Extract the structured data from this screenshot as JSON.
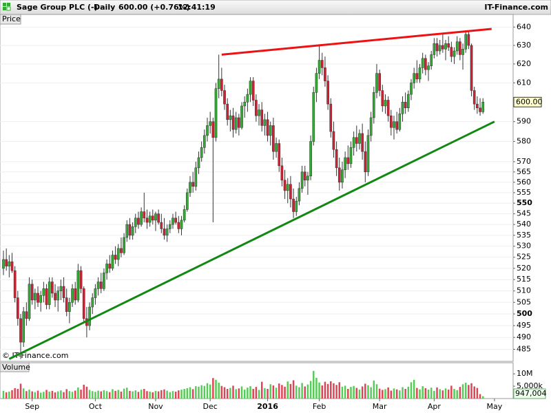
{
  "header": {
    "title": "Sage Group PLC (-)",
    "period": "Daily",
    "quote": "600.00 (+0.76%)",
    "time": "12:41:19",
    "brand": "IT-Finance.com"
  },
  "chart_data": [
    {
      "type": "candlestick",
      "panel_label": "Price",
      "watermark": "© IT-Finance.com",
      "log_scale": true,
      "grid": true,
      "up_color": "#33aa33",
      "down_color": "#cc2233",
      "ylim": [
        480,
        647
      ],
      "yticks": [
        485,
        490,
        495,
        500,
        505,
        510,
        515,
        520,
        525,
        530,
        535,
        540,
        545,
        550,
        555,
        560,
        565,
        570,
        580,
        590,
        610,
        620,
        630,
        640
      ],
      "xlim": [
        -1.2,
        177.5
      ],
      "xticks": [
        {
          "value": 10,
          "label": "Sep"
        },
        {
          "value": 32,
          "label": "Oct"
        },
        {
          "value": 53,
          "label": "Nov"
        },
        {
          "value": 72,
          "label": "Dec"
        },
        {
          "value": 92,
          "label": "2016"
        },
        {
          "value": 110,
          "label": "Feb"
        },
        {
          "value": 131,
          "label": "Mar"
        },
        {
          "value": 150,
          "label": "Apr"
        },
        {
          "value": 171,
          "label": "May"
        }
      ],
      "last_price": {
        "value": 600,
        "label": "600.00"
      },
      "trendlines": [
        {
          "color": "#ee1111",
          "x": [
            76,
            170
          ],
          "values": [
            625,
            639
          ]
        },
        {
          "color": "#118811",
          "x": [
            2,
            171
          ],
          "values": [
            481,
            590
          ]
        }
      ],
      "ohlc": [
        [
          520,
          528,
          517,
          524
        ],
        [
          524,
          529,
          519,
          521
        ],
        [
          521,
          526,
          516,
          523
        ],
        [
          523,
          527,
          518,
          519
        ],
        [
          519,
          521,
          505,
          507
        ],
        [
          507,
          510,
          495,
          498
        ],
        [
          498,
          500,
          481,
          488
        ],
        [
          488,
          503,
          486,
          501
        ],
        [
          501,
          505,
          495,
          498
        ],
        [
          498,
          516,
          497,
          513
        ],
        [
          513,
          515,
          504,
          506
        ],
        [
          506,
          511,
          502,
          509
        ],
        [
          509,
          512,
          503,
          505
        ],
        [
          505,
          510,
          501,
          508
        ],
        [
          508,
          514,
          505,
          511
        ],
        [
          511,
          513,
          502,
          504
        ],
        [
          504,
          516,
          502,
          514
        ],
        [
          514,
          516,
          507,
          509
        ],
        [
          509,
          513,
          503,
          506
        ],
        [
          506,
          512,
          501,
          510
        ],
        [
          510,
          515,
          506,
          512
        ],
        [
          512,
          516,
          505,
          507
        ],
        [
          507,
          511,
          499,
          501
        ],
        [
          501,
          507,
          496,
          505
        ],
        [
          505,
          513,
          503,
          511
        ],
        [
          511,
          514,
          504,
          506
        ],
        [
          506,
          522,
          505,
          519
        ],
        [
          519,
          521,
          509,
          511
        ],
        [
          511,
          512,
          496,
          498
        ],
        [
          498,
          503,
          490,
          495
        ],
        [
          495,
          505,
          493,
          503
        ],
        [
          503,
          509,
          500,
          507
        ],
        [
          507,
          513,
          504,
          511
        ],
        [
          511,
          516,
          508,
          514
        ],
        [
          514,
          518,
          509,
          511
        ],
        [
          511,
          520,
          510,
          518
        ],
        [
          518,
          524,
          515,
          522
        ],
        [
          522,
          526,
          518,
          520
        ],
        [
          520,
          528,
          519,
          526
        ],
        [
          526,
          530,
          522,
          524
        ],
        [
          524,
          531,
          521,
          529
        ],
        [
          529,
          534,
          525,
          527
        ],
        [
          527,
          536,
          526,
          534
        ],
        [
          534,
          542,
          532,
          540
        ],
        [
          540,
          543,
          533,
          535
        ],
        [
          535,
          541,
          533,
          539
        ],
        [
          539,
          545,
          536,
          543
        ],
        [
          543,
          546,
          538,
          540
        ],
        [
          540,
          548,
          539,
          546
        ],
        [
          546,
          555,
          541,
          543
        ],
        [
          543,
          547,
          538,
          541
        ],
        [
          541,
          546,
          539,
          544
        ],
        [
          544,
          547,
          540,
          542
        ],
        [
          542,
          546,
          537,
          545
        ],
        [
          545,
          547,
          540,
          541
        ],
        [
          541,
          545,
          536,
          538
        ],
        [
          538,
          543,
          533,
          535
        ],
        [
          535,
          540,
          532,
          538
        ],
        [
          538,
          542,
          536,
          540
        ],
        [
          540,
          545,
          538,
          543
        ],
        [
          543,
          546,
          540,
          541
        ],
        [
          541,
          544,
          536,
          538
        ],
        [
          538,
          544,
          535,
          542
        ],
        [
          542,
          549,
          541,
          547
        ],
        [
          547,
          557,
          546,
          555
        ],
        [
          555,
          563,
          553,
          560
        ],
        [
          560,
          565,
          555,
          558
        ],
        [
          558,
          570,
          556,
          567
        ],
        [
          567,
          575,
          564,
          572
        ],
        [
          572,
          580,
          570,
          577
        ],
        [
          577,
          586,
          574,
          583
        ],
        [
          583,
          592,
          580,
          588
        ],
        [
          588,
          595,
          584,
          590
        ],
        [
          590,
          592,
          541,
          582
        ],
        [
          582,
          610,
          580,
          607
        ],
        [
          607,
          625,
          602,
          612
        ],
        [
          612,
          618,
          603,
          606
        ],
        [
          606,
          609,
          596,
          599
        ],
        [
          599,
          602,
          588,
          591
        ],
        [
          591,
          596,
          585,
          593
        ],
        [
          593,
          597,
          582,
          586
        ],
        [
          586,
          595,
          584,
          592
        ],
        [
          592,
          594,
          583,
          587
        ],
        [
          587,
          600,
          586,
          598
        ],
        [
          598,
          603,
          592,
          600
        ],
        [
          600,
          607,
          595,
          604
        ],
        [
          604,
          613,
          600,
          611
        ],
        [
          611,
          613,
          598,
          601
        ],
        [
          601,
          604,
          590,
          593
        ],
        [
          593,
          599,
          588,
          596
        ],
        [
          596,
          600,
          585,
          588
        ],
        [
          588,
          594,
          583,
          591
        ],
        [
          591,
          595,
          580,
          583
        ],
        [
          583,
          590,
          578,
          588
        ],
        [
          588,
          592,
          571,
          575
        ],
        [
          575,
          582,
          572,
          579
        ],
        [
          579,
          581,
          565,
          568
        ],
        [
          568,
          572,
          558,
          561
        ],
        [
          561,
          566,
          552,
          556
        ],
        [
          556,
          562,
          550,
          559
        ],
        [
          559,
          563,
          548,
          552
        ],
        [
          552,
          557,
          543,
          546
        ],
        [
          546,
          553,
          544,
          551
        ],
        [
          551,
          560,
          549,
          557
        ],
        [
          557,
          568,
          555,
          565
        ],
        [
          565,
          568,
          558,
          561
        ],
        [
          561,
          565,
          554,
          563
        ],
        [
          563,
          583,
          561,
          580
        ],
        [
          580,
          608,
          578,
          605
        ],
        [
          605,
          618,
          600,
          615
        ],
        [
          615,
          630,
          612,
          622
        ],
        [
          622,
          626,
          614,
          618
        ],
        [
          618,
          624,
          608,
          611
        ],
        [
          611,
          614,
          596,
          599
        ],
        [
          599,
          602,
          582,
          585
        ],
        [
          585,
          590,
          572,
          576
        ],
        [
          576,
          580,
          563,
          567
        ],
        [
          567,
          572,
          556,
          560
        ],
        [
          560,
          570,
          557,
          566
        ],
        [
          566,
          575,
          562,
          572
        ],
        [
          572,
          578,
          566,
          569
        ],
        [
          569,
          580,
          567,
          577
        ],
        [
          577,
          585,
          573,
          582
        ],
        [
          582,
          588,
          575,
          579
        ],
        [
          579,
          586,
          576,
          584
        ],
        [
          584,
          589,
          571,
          575
        ],
        [
          575,
          580,
          560,
          565
        ],
        [
          565,
          586,
          563,
          583
        ],
        [
          583,
          595,
          580,
          592
        ],
        [
          592,
          608,
          589,
          605
        ],
        [
          605,
          620,
          602,
          615
        ],
        [
          615,
          617,
          603,
          606
        ],
        [
          606,
          609,
          595,
          598
        ],
        [
          598,
          604,
          594,
          601
        ],
        [
          601,
          603,
          590,
          593
        ],
        [
          593,
          596,
          583,
          587
        ],
        [
          587,
          593,
          581,
          590
        ],
        [
          590,
          595,
          584,
          586
        ],
        [
          586,
          597,
          585,
          594
        ],
        [
          594,
          603,
          590,
          600
        ],
        [
          600,
          605,
          594,
          597
        ],
        [
          597,
          606,
          595,
          604
        ],
        [
          604,
          612,
          601,
          610
        ],
        [
          610,
          618,
          607,
          615
        ],
        [
          615,
          622,
          610,
          612
        ],
        [
          612,
          620,
          610,
          618
        ],
        [
          618,
          626,
          615,
          623
        ],
        [
          623,
          625,
          614,
          617
        ],
        [
          617,
          621,
          611,
          619
        ],
        [
          619,
          627,
          617,
          625
        ],
        [
          625,
          634,
          623,
          631
        ],
        [
          631,
          634,
          624,
          627
        ],
        [
          627,
          633,
          625,
          630
        ],
        [
          630,
          636,
          626,
          628
        ],
        [
          628,
          633,
          622,
          631
        ],
        [
          631,
          635,
          627,
          629
        ],
        [
          629,
          632,
          621,
          624
        ],
        [
          624,
          629,
          620,
          627
        ],
        [
          627,
          635,
          625,
          632
        ],
        [
          632,
          634,
          622,
          625
        ],
        [
          625,
          631,
          617,
          628
        ],
        [
          628,
          638,
          626,
          636
        ],
        [
          636,
          638,
          628,
          630
        ],
        [
          630,
          631,
          603,
          606
        ],
        [
          606,
          608,
          596,
          599
        ],
        [
          599,
          603,
          594,
          597
        ],
        [
          597,
          602,
          593,
          595
        ],
        [
          595,
          602,
          594,
          600
        ]
      ]
    },
    {
      "type": "bar",
      "panel_label": "Volume",
      "up_color": "#55cc55",
      "down_color": "#dd4455",
      "ylim": [
        0,
        14.5
      ],
      "yticks": [
        {
          "value": 5,
          "label": "5,000k"
        },
        {
          "value": 10,
          "label": "10M"
        }
      ],
      "last_volume": {
        "value": 0.947004,
        "label": "947,004"
      },
      "values": [
        3.1,
        2.5,
        2.8,
        3.4,
        4.2,
        3.9,
        6.0,
        4.1,
        3.0,
        3.6,
        2.9,
        2.6,
        3.2,
        2.4,
        2.7,
        3.5,
        2.8,
        3.1,
        2.5,
        2.9,
        3.3,
        2.6,
        3.8,
        3.0,
        2.7,
        3.2,
        4.5,
        3.6,
        5.6,
        4.8,
        3.5,
        3.0,
        2.7,
        3.2,
        2.9,
        3.4,
        3.0,
        2.6,
        3.8,
        3.1,
        3.5,
        2.8,
        4.0,
        4.4,
        3.1,
        2.9,
        3.3,
        2.7,
        3.6,
        3.9,
        3.0,
        2.8,
        2.5,
        3.1,
        2.9,
        3.4,
        3.7,
        3.2,
        2.6,
        3.0,
        2.8,
        3.3,
        3.6,
        3.9,
        4.2,
        4.6,
        3.8,
        5.0,
        4.8,
        5.4,
        5.1,
        6.2,
        5.7,
        8.3,
        7.6,
        6.4,
        5.1,
        4.6,
        3.9,
        4.3,
        5.2,
        3.8,
        4.1,
        4.9,
        3.6,
        4.4,
        5.0,
        3.9,
        4.7,
        3.5,
        6.8,
        4.2,
        3.9,
        5.8,
        5.3,
        4.4,
        6.1,
        5.5,
        4.8,
        6.9,
        5.9,
        7.4,
        5.2,
        4.6,
        6.3,
        4.9,
        5.7,
        7.1,
        11.2,
        8.4,
        6.5,
        5.3,
        6.8,
        5.9,
        7.0,
        6.2,
        5.5,
        6.6,
        4.8,
        5.2,
        3.9,
        4.7,
        5.1,
        4.3,
        3.6,
        4.9,
        6.0,
        5.4,
        4.6,
        7.3,
        5.8,
        4.0,
        3.5,
        3.8,
        4.5,
        3.2,
        4.1,
        3.7,
        3.3,
        4.6,
        3.9,
        4.8,
        6.6,
        7.6,
        4.3,
        3.7,
        5.0,
        4.2,
        3.6,
        4.4,
        3.1,
        4.5,
        3.8,
        3.3,
        4.1,
        3.6,
        5.2,
        3.9,
        3.4,
        4.7,
        5.8,
        6.4,
        5.5,
        6.2,
        4.9,
        4.3,
        1.8,
        0.947004
      ]
    }
  ]
}
